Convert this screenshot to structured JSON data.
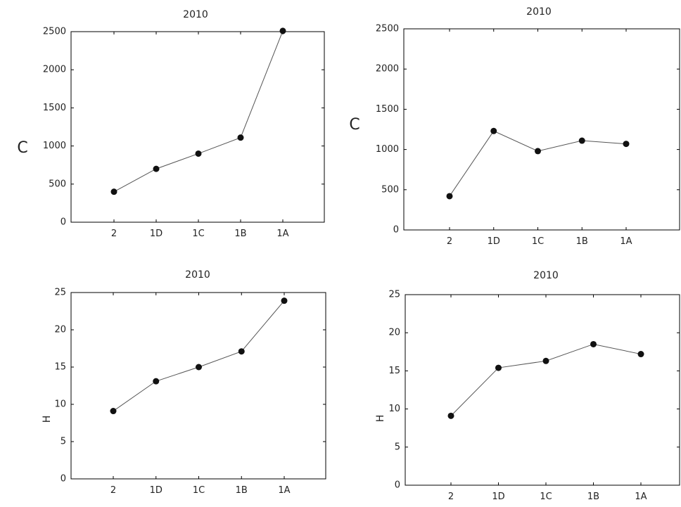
{
  "chart_data": [
    {
      "type": "line",
      "title": "2010",
      "ylabel": "C",
      "xlabel": "",
      "categories": [
        "2",
        "1D",
        "1C",
        "1B",
        "1A"
      ],
      "series": [
        {
          "values": [
            400,
            700,
            900,
            1110,
            2510
          ]
        }
      ],
      "ylim": [
        0,
        2500
      ],
      "yticks": [
        0,
        500,
        1000,
        1500,
        2000,
        2500
      ],
      "grid": false,
      "marker": "filled-circle",
      "line_color": "#555555",
      "marker_color": "#111111"
    },
    {
      "type": "line",
      "title": "2010",
      "ylabel": "C",
      "xlabel": "",
      "categories": [
        "2",
        "1D",
        "1C",
        "1B",
        "1A"
      ],
      "series": [
        {
          "values": [
            420,
            1230,
            980,
            1110,
            1070
          ]
        }
      ],
      "ylim": [
        0,
        2500
      ],
      "yticks": [
        0,
        500,
        1000,
        1500,
        2000,
        2500
      ],
      "grid": false,
      "marker": "filled-circle",
      "line_color": "#555555",
      "marker_color": "#111111"
    },
    {
      "type": "line",
      "title": "2010",
      "ylabel": "H",
      "xlabel": "",
      "categories": [
        "2",
        "1D",
        "1C",
        "1B",
        "1A"
      ],
      "series": [
        {
          "values": [
            9.1,
            13.1,
            15.0,
            17.1,
            23.9
          ]
        }
      ],
      "ylim": [
        0,
        25
      ],
      "yticks": [
        0,
        5,
        10,
        15,
        20,
        25
      ],
      "grid": false,
      "marker": "filled-circle",
      "line_color": "#555555",
      "marker_color": "#111111"
    },
    {
      "type": "line",
      "title": "2010",
      "ylabel": "H",
      "xlabel": "",
      "categories": [
        "2",
        "1D",
        "1C",
        "1B",
        "1A"
      ],
      "series": [
        {
          "values": [
            9.1,
            15.4,
            16.3,
            18.5,
            17.2
          ]
        }
      ],
      "ylim": [
        0,
        25
      ],
      "yticks": [
        0,
        5,
        10,
        15,
        20,
        25
      ],
      "grid": false,
      "marker": "filled-circle",
      "line_color": "#555555",
      "marker_color": "#111111"
    }
  ]
}
